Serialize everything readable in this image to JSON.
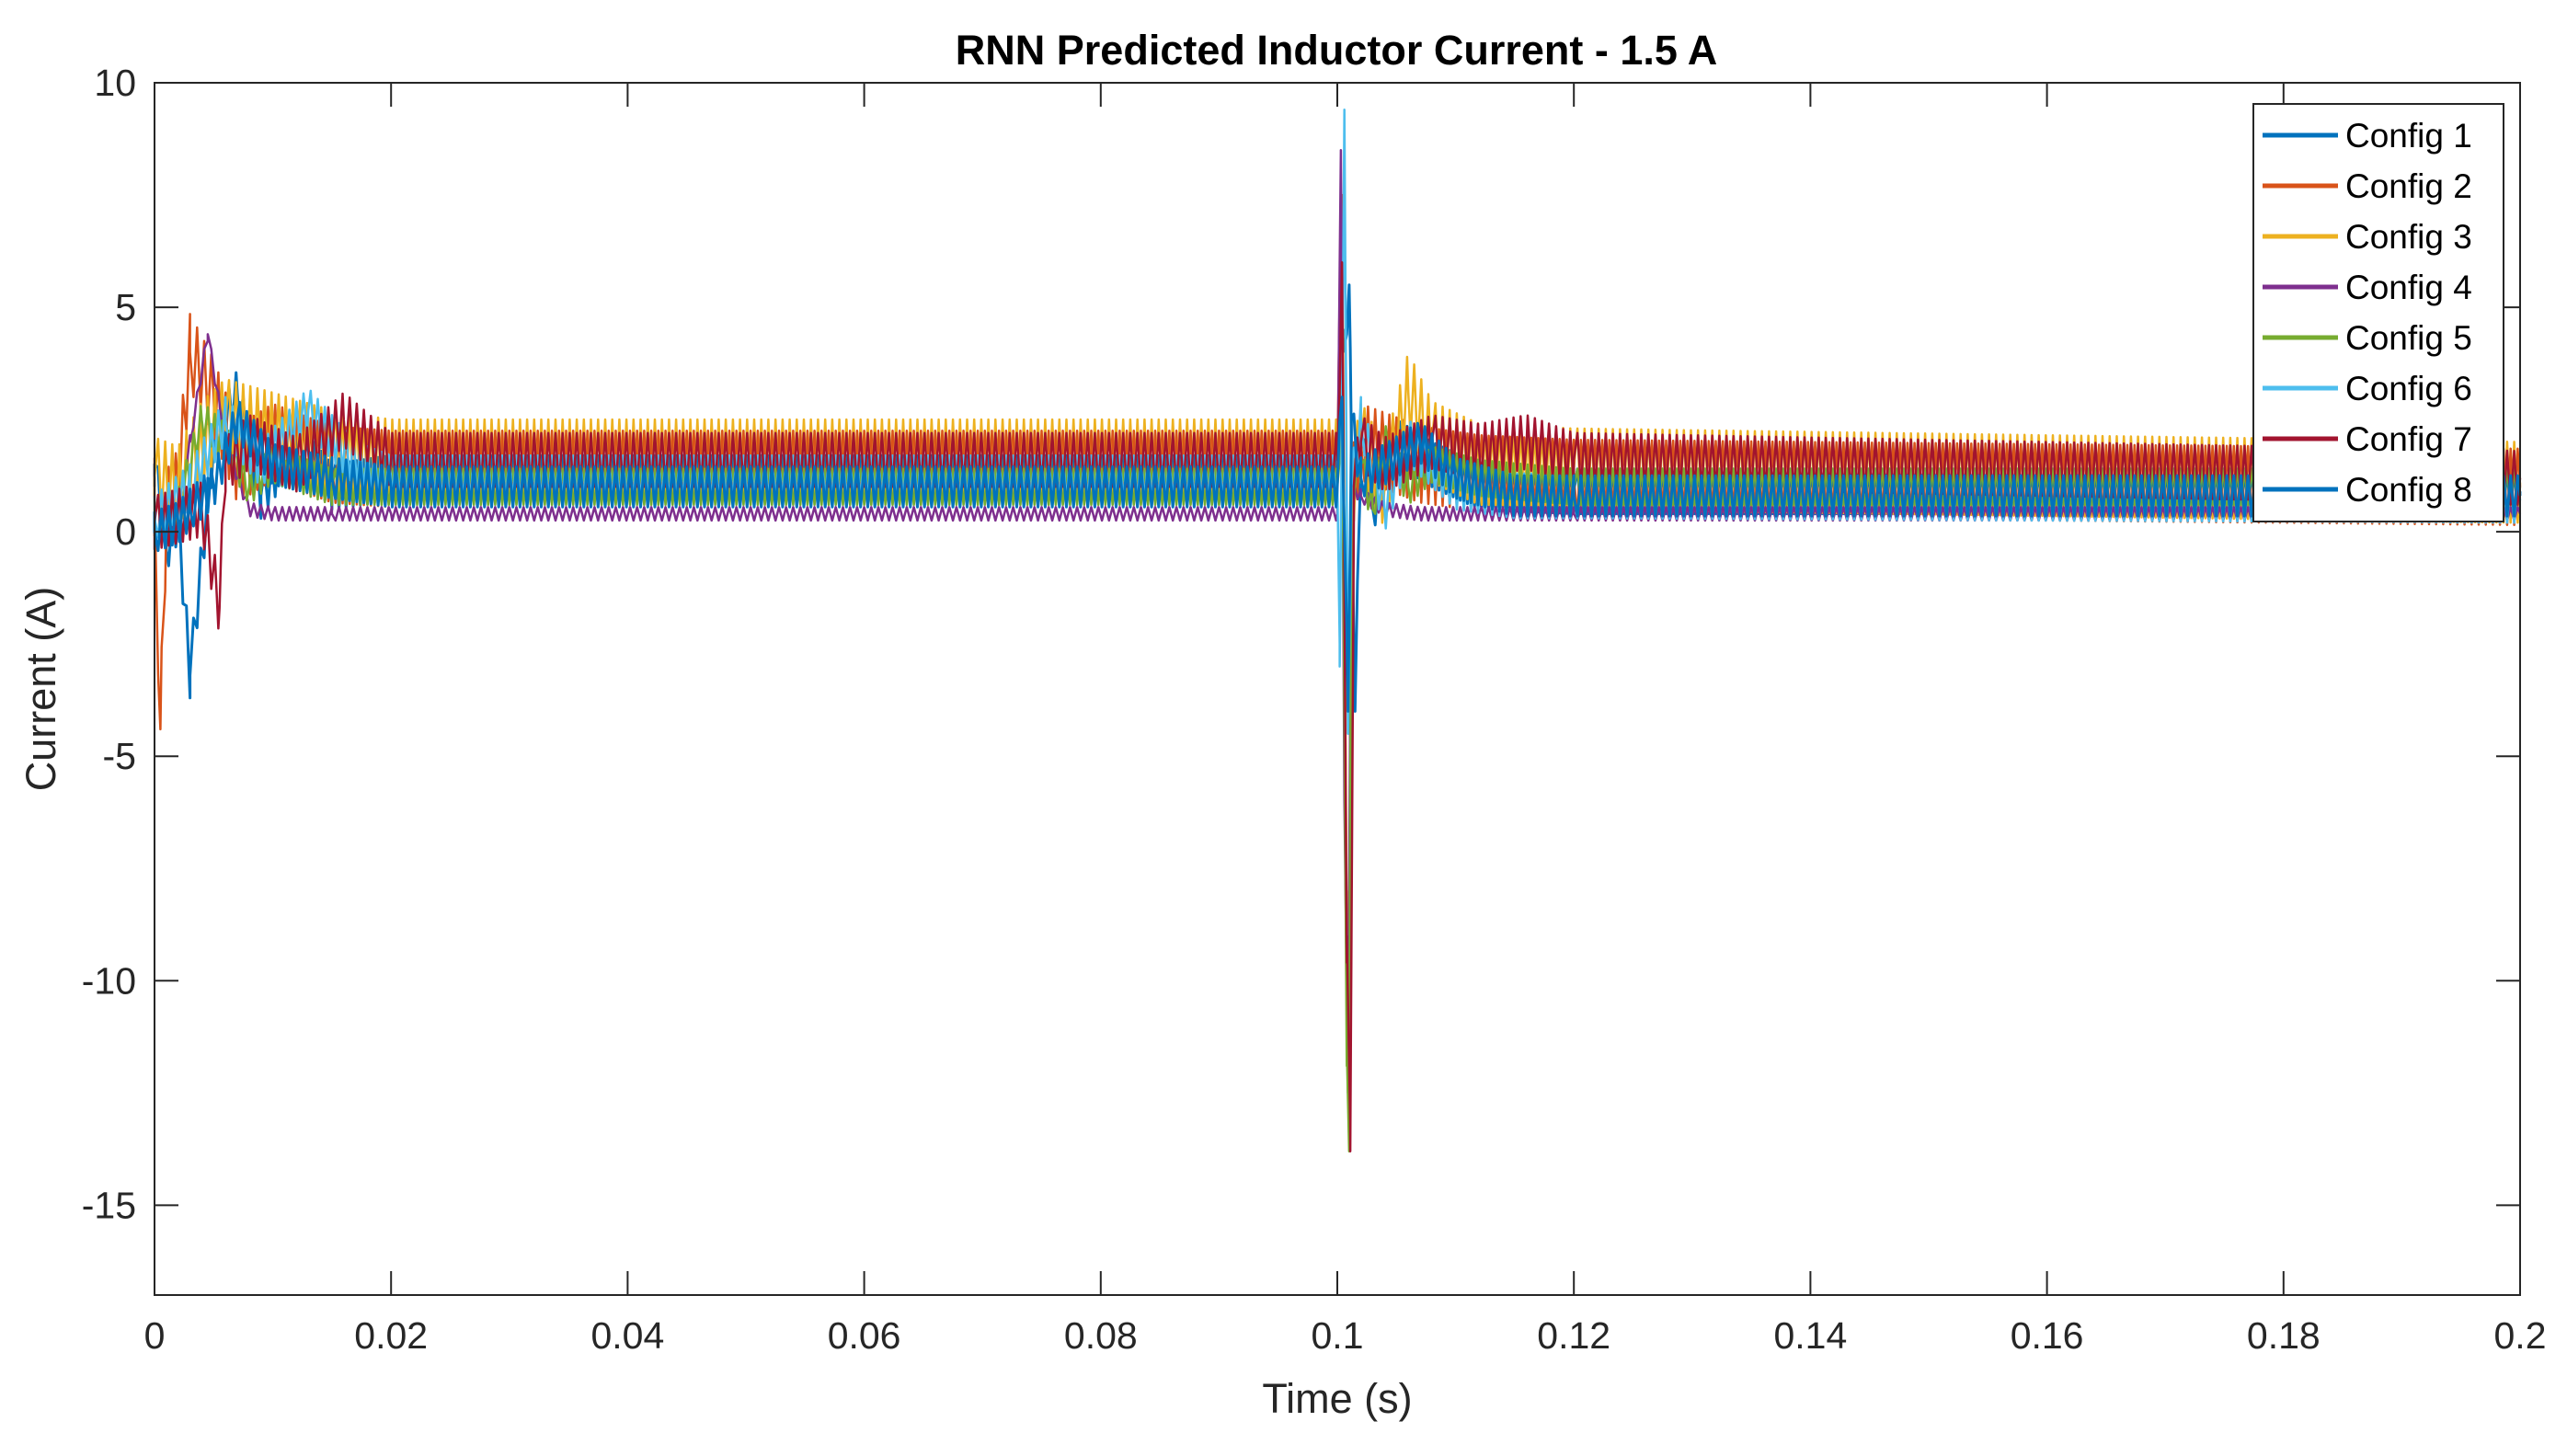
{
  "chart_data": {
    "type": "line",
    "title": "RNN Predicted Inductor Current - 1.5 A",
    "xlabel": "Time (s)",
    "ylabel": "Current (A)",
    "xlim": [
      0,
      0.2
    ],
    "ylim": [
      -17,
      10
    ],
    "xticks": [
      0,
      0.02,
      0.04,
      0.06,
      0.08,
      0.1,
      0.12,
      0.14,
      0.16,
      0.18,
      0.2
    ],
    "xtick_labels": [
      "0",
      "0.02",
      "0.04",
      "0.06",
      "0.08",
      "0.1",
      "0.12",
      "0.14",
      "0.16",
      "0.18",
      "0.2"
    ],
    "yticks": [
      -15,
      -10,
      -5,
      0,
      5,
      10
    ],
    "ytick_labels": [
      "-15",
      "-10",
      "-5",
      "0",
      "5",
      "10"
    ],
    "grid": false,
    "legend_position": "top-right",
    "series": [
      {
        "name": "Config 1",
        "color": "#0072BD",
        "x": [
          0,
          0.001,
          0.002,
          0.003,
          0.005,
          0.007,
          0.009,
          0.012,
          0.015,
          0.02,
          0.03,
          0.1,
          0.1005,
          0.101,
          0.1015,
          0.102,
          0.103,
          0.105,
          0.108,
          0.112,
          0.12,
          0.2
        ],
        "y": [
          1.5,
          -0.4,
          0.3,
          -3.2,
          2.0,
          3.1,
          0.8,
          2.0,
          1.0,
          1.2,
          1.2,
          1.2,
          4.0,
          5.5,
          -4.0,
          2.0,
          0.5,
          2.0,
          1.5,
          1.0,
          0.9,
          0.9
        ],
        "band": 1.0
      },
      {
        "name": "Config 2",
        "color": "#D95319",
        "x": [
          0,
          0.0005,
          0.001,
          0.002,
          0.003,
          0.005,
          0.007,
          0.01,
          0.015,
          0.02,
          0.1,
          0.1004,
          0.1008,
          0.101,
          0.1013,
          0.102,
          0.104,
          0.107,
          0.112,
          0.12,
          0.2
        ],
        "y": [
          0.8,
          -4.4,
          0.5,
          1.0,
          4.0,
          3.0,
          1.5,
          2.0,
          1.5,
          1.4,
          1.4,
          7.5,
          -10.0,
          -13.6,
          1.0,
          2.0,
          1.8,
          1.5,
          1.3,
          1.2,
          1.0
        ],
        "band": 1.7
      },
      {
        "name": "Config 3",
        "color": "#EDB120",
        "x": [
          0,
          0.002,
          0.004,
          0.006,
          0.01,
          0.015,
          0.02,
          0.1,
          0.1004,
          0.1008,
          0.101,
          0.1013,
          0.102,
          0.104,
          0.106,
          0.108,
          0.112,
          0.12,
          0.2
        ],
        "y": [
          1.2,
          1.0,
          2.0,
          2.5,
          2.2,
          1.8,
          1.6,
          1.6,
          6.5,
          -8.0,
          -12.0,
          1.0,
          2.0,
          1.0,
          3.1,
          2.0,
          1.5,
          1.4,
          1.1
        ],
        "band": 1.8
      },
      {
        "name": "Config 4",
        "color": "#7E2F8E",
        "x": [
          0,
          0.001,
          0.002,
          0.003,
          0.0045,
          0.006,
          0.008,
          0.01,
          0.015,
          0.02,
          0.1,
          0.1003,
          0.1006,
          0.1009,
          0.1012,
          0.102,
          0.104,
          0.107,
          0.112,
          0.12,
          0.2
        ],
        "y": [
          0.1,
          0.0,
          0.5,
          2.0,
          4.4,
          2.0,
          0.5,
          0.4,
          0.4,
          0.4,
          0.4,
          8.5,
          -6.0,
          -12.5,
          1.0,
          0.8,
          0.5,
          0.4,
          0.4,
          0.4,
          0.4
        ],
        "band": 0.3
      },
      {
        "name": "Config 5",
        "color": "#77AC30",
        "x": [
          0,
          0.002,
          0.004,
          0.006,
          0.008,
          0.01,
          0.015,
          0.02,
          0.1,
          0.1004,
          0.1008,
          0.101,
          0.1012,
          0.102,
          0.103,
          0.104,
          0.106,
          0.108,
          0.112,
          0.12,
          0.2
        ],
        "y": [
          0.3,
          0.5,
          2.5,
          2.0,
          1.0,
          1.5,
          1.0,
          1.0,
          1.0,
          3.0,
          -11.5,
          -13.8,
          1.0,
          1.5,
          0.5,
          2.0,
          1.0,
          1.5,
          1.2,
          1.0,
          1.0
        ],
        "band": 0.8
      },
      {
        "name": "Config 6",
        "color": "#4DBEEE",
        "x": [
          0,
          0.003,
          0.006,
          0.009,
          0.013,
          0.017,
          0.02,
          0.1,
          0.1002,
          0.1006,
          0.1009,
          0.1012,
          0.102,
          0.104,
          0.106,
          0.108,
          0.11,
          0.115,
          0.12,
          0.2
        ],
        "y": [
          0.3,
          1.0,
          2.5,
          1.5,
          2.7,
          1.5,
          1.2,
          1.2,
          -3.0,
          9.4,
          -4.5,
          1.0,
          2.5,
          0.5,
          2.0,
          1.5,
          1.0,
          0.8,
          0.8,
          0.7
        ],
        "band": 1.0
      },
      {
        "name": "Config 7",
        "color": "#A2142F",
        "x": [
          0,
          0.004,
          0.0055,
          0.006,
          0.008,
          0.012,
          0.016,
          0.02,
          0.1,
          0.1004,
          0.1008,
          0.1011,
          0.1014,
          0.102,
          0.104,
          0.108,
          0.112,
          0.116,
          0.12,
          0.2
        ],
        "y": [
          0.2,
          0.5,
          -1.7,
          1.5,
          2.0,
          1.5,
          2.5,
          1.6,
          1.6,
          6.0,
          -9.0,
          -13.8,
          1.0,
          2.0,
          1.5,
          2.0,
          1.8,
          2.0,
          1.6,
          1.2
        ],
        "band": 1.2
      },
      {
        "name": "Config 8",
        "color": "#0072BD",
        "x": [
          0,
          0.002,
          0.003,
          0.005,
          0.007,
          0.01,
          0.015,
          0.02,
          0.1,
          0.1004,
          0.1009,
          0.1012,
          0.102,
          0.104,
          0.107,
          0.11,
          0.115,
          0.12,
          0.2
        ],
        "y": [
          0.0,
          0.2,
          0.5,
          1.0,
          2.5,
          1.5,
          1.2,
          1.0,
          1.0,
          3.0,
          -4.0,
          2.5,
          1.2,
          1.5,
          2.0,
          1.2,
          0.8,
          0.8,
          0.8
        ],
        "band": 0.9
      }
    ]
  }
}
